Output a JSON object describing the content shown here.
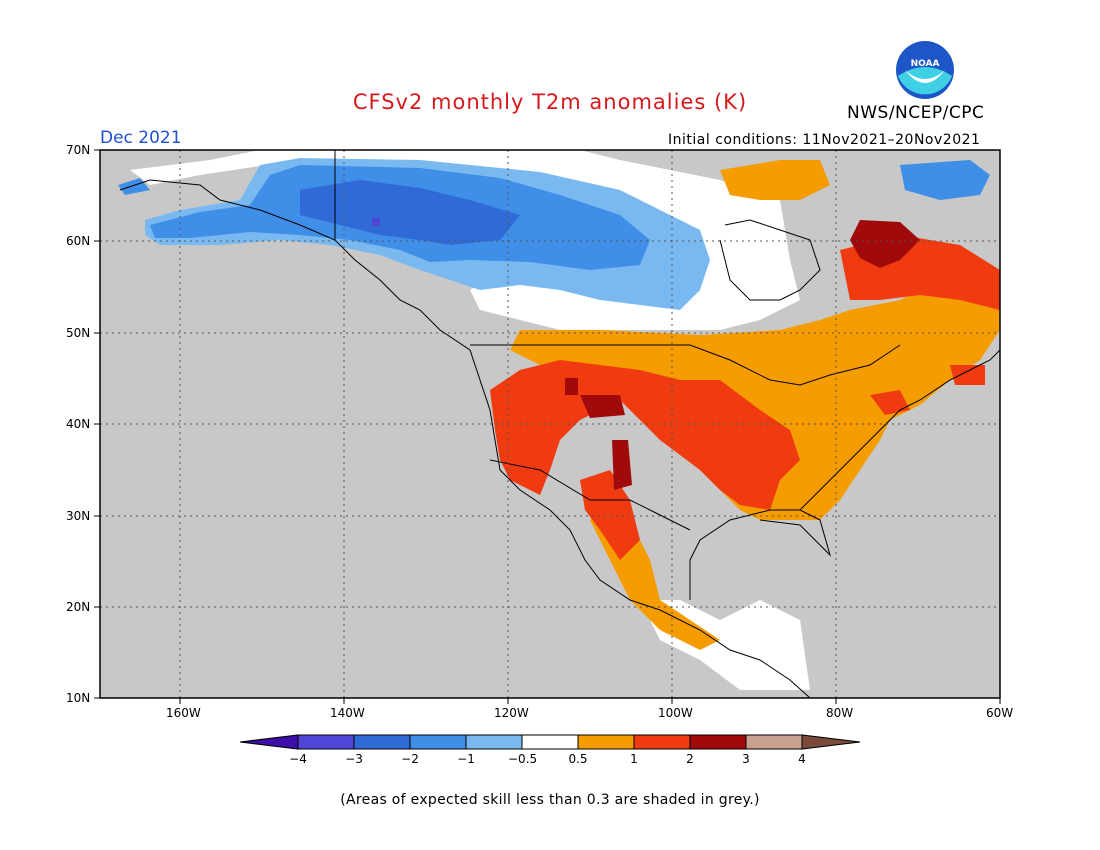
{
  "header": {
    "title": "CFSv2 monthly T2m anomalies (K)",
    "month": "Dec 2021",
    "initial_conditions": "Initial conditions: 11Nov2021–20Nov2021",
    "agency": "NWS/NCEP/CPC",
    "logo_text": "NOAA"
  },
  "map": {
    "lat_labels": [
      "70N",
      "60N",
      "50N",
      "40N",
      "30N",
      "20N",
      "10N"
    ],
    "lon_labels": [
      "160W",
      "140W",
      "120W",
      "100W",
      "80W",
      "60W"
    ],
    "background_color": "#c8c8c8",
    "coast_color": "#000000"
  },
  "colorbar": {
    "labels": [
      "−4",
      "−3",
      "−2",
      "−1",
      "−0.5",
      "0.5",
      "1",
      "2",
      "3",
      "4"
    ],
    "colors": [
      "#3d0fa8",
      "#5046d6",
      "#2f6ad6",
      "#3f8ee8",
      "#7ab9f0",
      "#ffffff",
      "#f59c00",
      "#f03b10",
      "#a00a0a",
      "#c8a090",
      "#7a4a3a"
    ]
  },
  "footer": {
    "note": "(Areas of expected skill less than 0.3 are shaded in grey.)"
  }
}
